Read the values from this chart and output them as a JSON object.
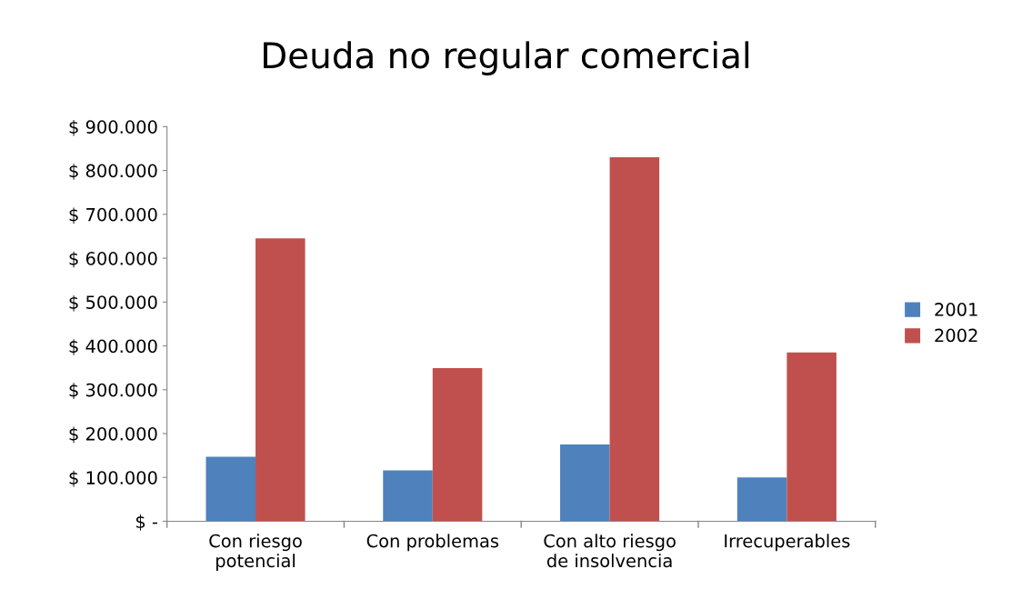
{
  "chart_data": {
    "type": "bar",
    "title": "Deuda no regular comercial",
    "categories": [
      "Con riesgo\npotencial",
      "Con problemas",
      "Con alto riesgo\nde insolvencia",
      "Irrecuperables"
    ],
    "series": [
      {
        "name": "2001",
        "color": "#4f81bd",
        "values": [
          147000,
          116000,
          175000,
          100000
        ]
      },
      {
        "name": "2002",
        "color": "#c0504d",
        "values": [
          645000,
          349000,
          830000,
          385000
        ]
      }
    ],
    "ylim": [
      0,
      900000
    ],
    "yticks": [
      {
        "value": 0,
        "label": "$ -"
      },
      {
        "value": 100000,
        "label": "$ 100.000"
      },
      {
        "value": 200000,
        "label": "$ 200.000"
      },
      {
        "value": 300000,
        "label": "$ 300.000"
      },
      {
        "value": 400000,
        "label": "$ 400.000"
      },
      {
        "value": 500000,
        "label": "$ 500.000"
      },
      {
        "value": 600000,
        "label": "$ 600.000"
      },
      {
        "value": 700000,
        "label": "$ 700.000"
      },
      {
        "value": 800000,
        "label": "$ 800.000"
      },
      {
        "value": 900000,
        "label": "$ 900.000"
      }
    ],
    "grid": false,
    "legend": "right"
  }
}
